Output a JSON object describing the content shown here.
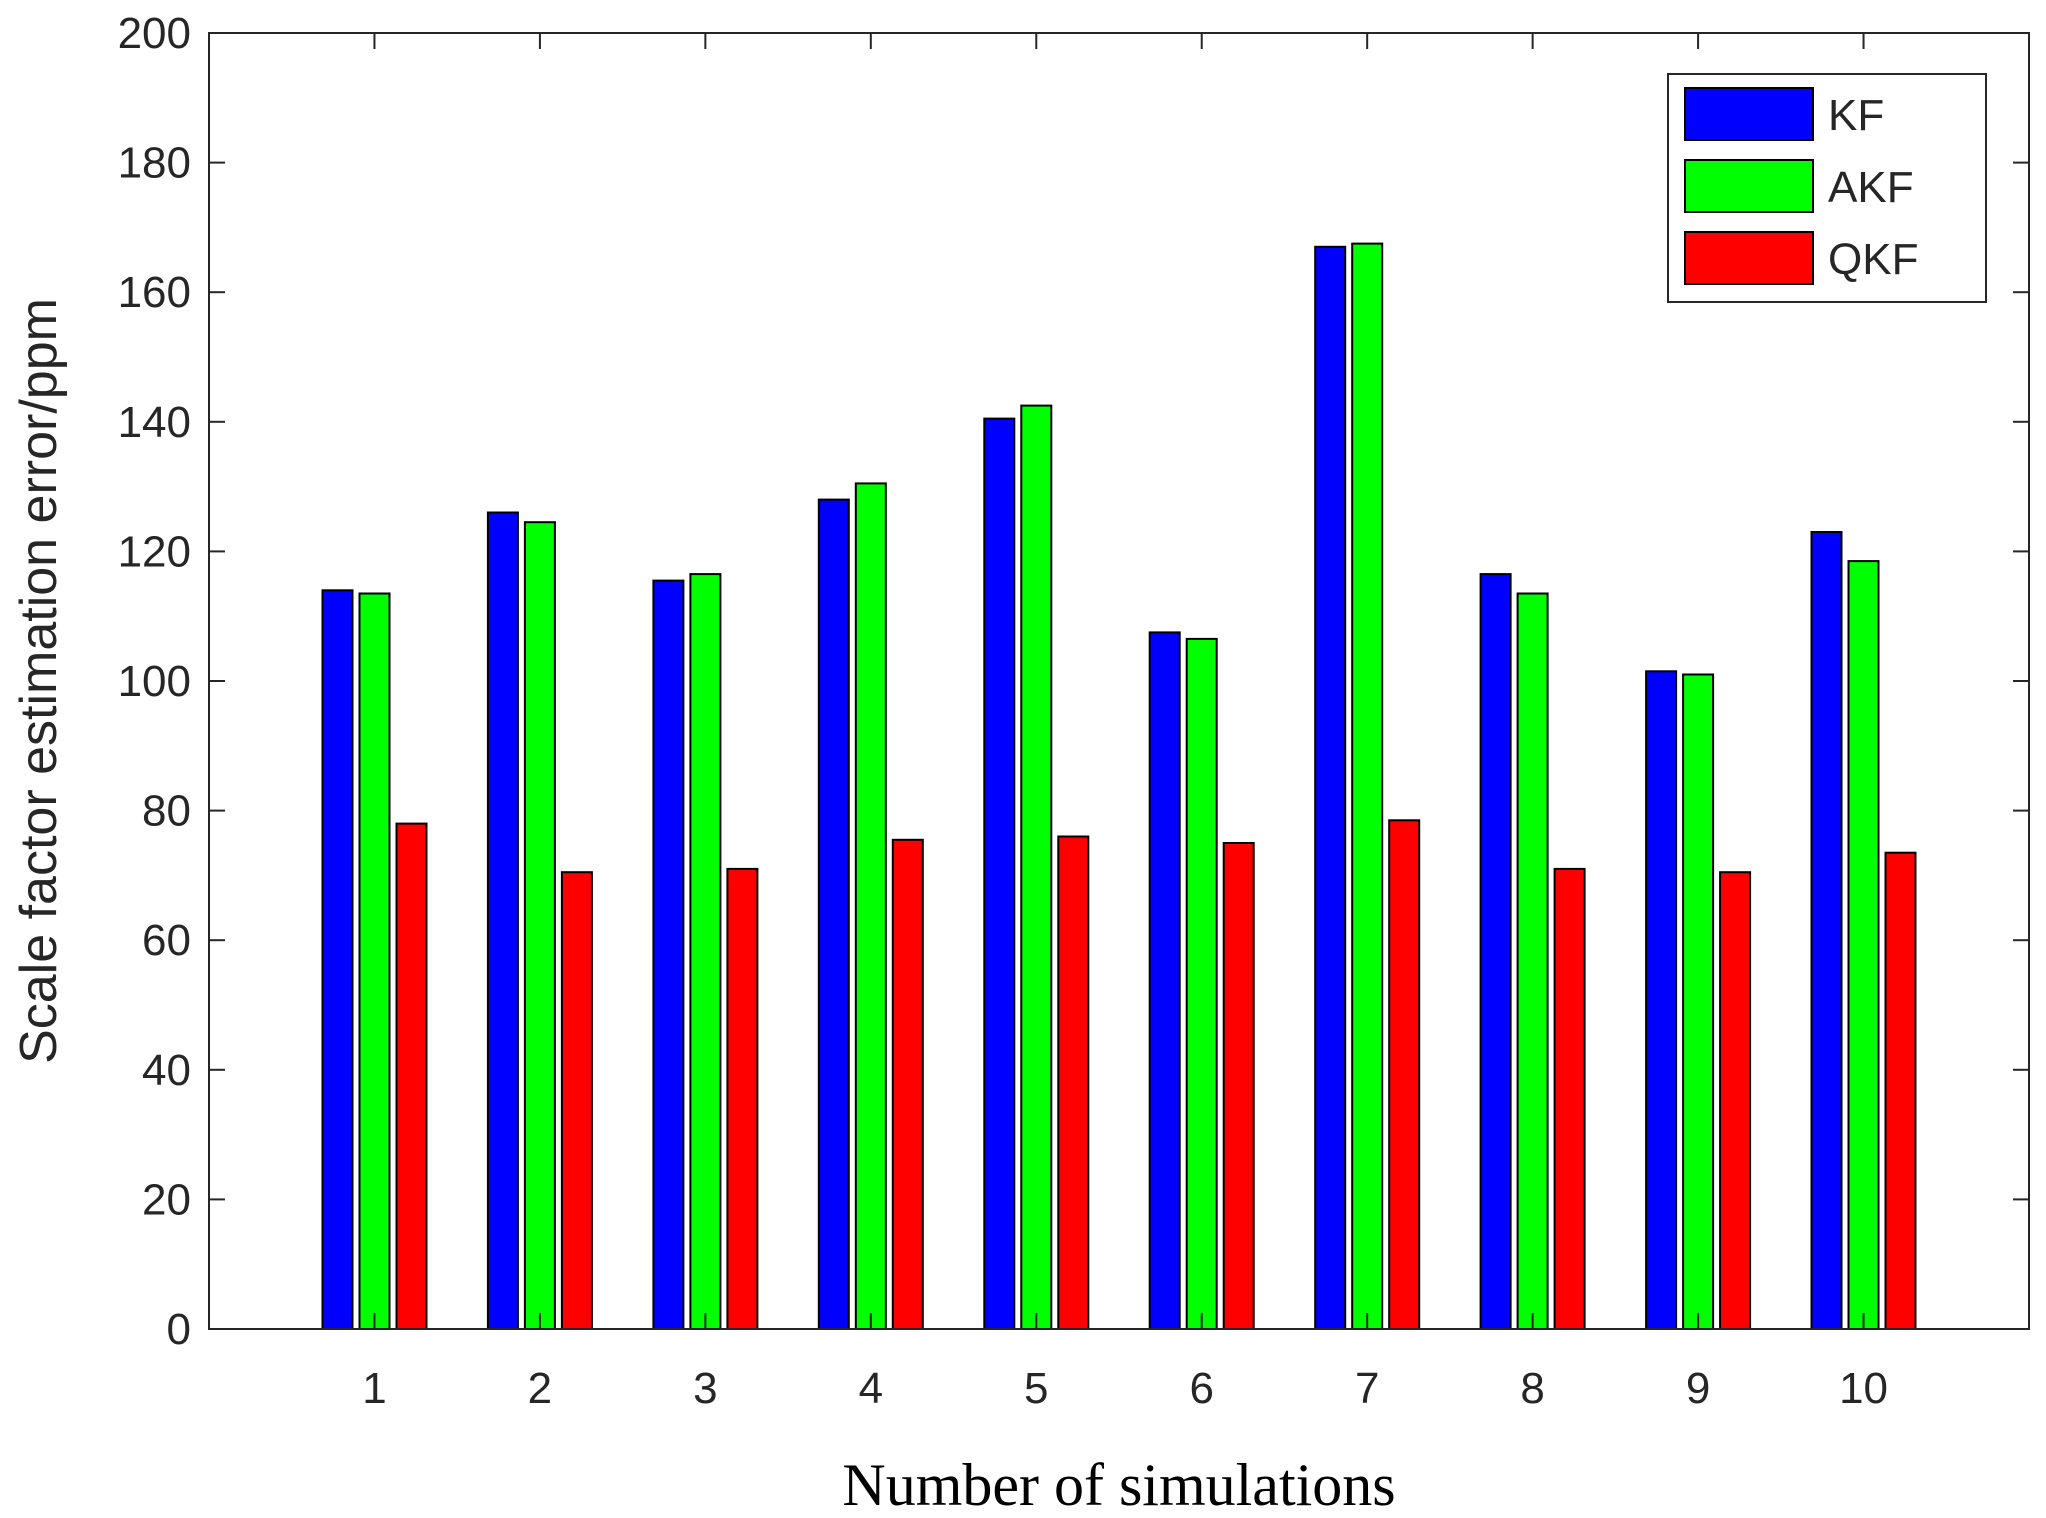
{
  "chart_data": {
    "type": "bar",
    "title": "",
    "xlabel": "Number of simulations",
    "ylabel": "Scale factor estimation error/ppm",
    "categories": [
      "1",
      "2",
      "3",
      "4",
      "5",
      "6",
      "7",
      "8",
      "9",
      "10"
    ],
    "ylim": [
      0,
      200
    ],
    "yticks": [
      0,
      20,
      40,
      60,
      80,
      100,
      120,
      140,
      160,
      180,
      200
    ],
    "grid": false,
    "legend_position": "top-right",
    "series": [
      {
        "name": "KF",
        "color": "#0000ff",
        "values": [
          114,
          126,
          115.5,
          128,
          140.5,
          107.5,
          167,
          116.5,
          101.5,
          123
        ]
      },
      {
        "name": "AKF",
        "color": "#00ff00",
        "values": [
          113.5,
          124.5,
          116.5,
          130.5,
          142.5,
          106.5,
          167.5,
          113.5,
          101,
          118.5
        ]
      },
      {
        "name": "QKF",
        "color": "#ff0000",
        "values": [
          78,
          70.5,
          71,
          75.5,
          76,
          75,
          78.5,
          71,
          70.5,
          73.5
        ]
      }
    ]
  }
}
